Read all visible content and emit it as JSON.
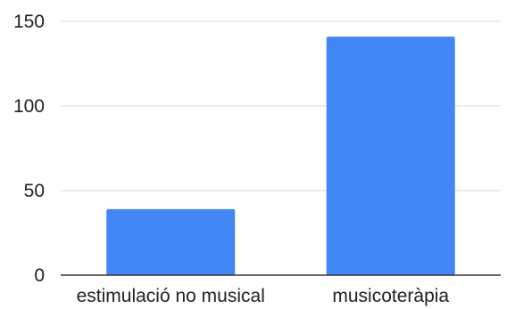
{
  "chart_data": {
    "type": "bar",
    "categories": [
      "estimulació no musical",
      "musicoteràpia"
    ],
    "values": [
      39,
      141
    ],
    "ylim": [
      0,
      150
    ],
    "yticks": [
      0,
      50,
      100,
      150
    ],
    "grid": true,
    "legend": "none",
    "bar_color": "#4285f4",
    "gridline_color": "#d9d9d9",
    "axis_color": "#333333"
  }
}
